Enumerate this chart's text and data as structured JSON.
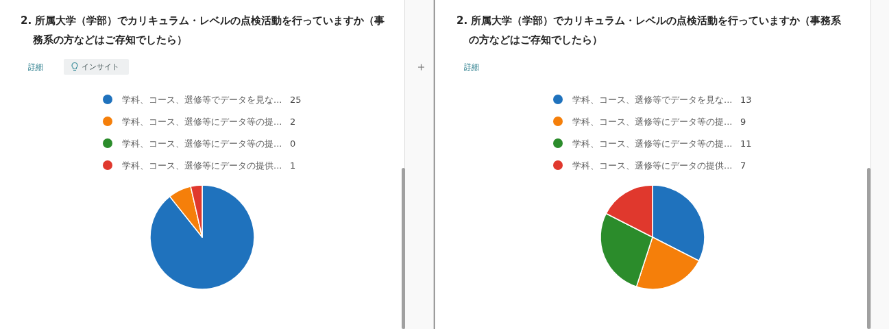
{
  "chart_data": [
    {
      "type": "pie",
      "title": "2. 所属大学（学部）でカリキュラム・レベルの点検活動を行っていますか（事務系の方などはご存知でしたら）",
      "categories": [
        "学科、コース、選修等でデータを見な...",
        "学科、コース、選修等にデータ等の提...",
        "学科、コース、選修等にデータ等の提...",
        "学科、コース、選修等にデータの提供..."
      ],
      "values": [
        25,
        2,
        0,
        1
      ],
      "value_labels": [
        "25",
        "2",
        "0",
        "1"
      ],
      "colors": [
        "#1f72bd",
        "#f57f0a",
        "#2b8c2b",
        "#e0382d"
      ],
      "legend": "top",
      "annotations": [
        "詳細",
        "インサイト"
      ]
    },
    {
      "type": "pie",
      "title": "2. 所属大学（学部）でカリキュラム・レベルの点検活動を行っていますか（事務系の方などはご存知でしたら）",
      "categories": [
        "学科、コース、選修等でデータを見な...",
        "学科、コース、選修等にデータ等の提...",
        "学科、コース、選修等にデータ等の提...",
        "学科、コース、選修等にデータの提供..."
      ],
      "values": [
        13,
        9,
        11,
        7
      ],
      "colors": [
        "#1f72bd",
        "#f57f0a",
        "#2b8c2b",
        "#e0382d"
      ],
      "legend": "top",
      "data_labels": true,
      "annotations": [
        "詳細"
      ]
    }
  ]
}
